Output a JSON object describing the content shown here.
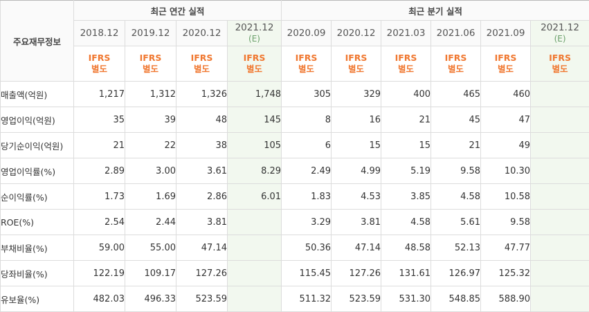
{
  "header": {
    "row_label": "주요재무정보",
    "group_annual": "최근 연간 실적",
    "group_quarter": "최근 분기 실적"
  },
  "periods": [
    {
      "date": "2018.12",
      "est": "",
      "std1": "IFRS",
      "std2": "별도"
    },
    {
      "date": "2019.12",
      "est": "",
      "std1": "IFRS",
      "std2": "별도"
    },
    {
      "date": "2020.12",
      "est": "",
      "std1": "IFRS",
      "std2": "별도"
    },
    {
      "date": "2021.12",
      "est": "(E)",
      "std1": "IFRS",
      "std2": "별도"
    },
    {
      "date": "2020.09",
      "est": "",
      "std1": "IFRS",
      "std2": "별도"
    },
    {
      "date": "2020.12",
      "est": "",
      "std1": "IFRS",
      "std2": "별도"
    },
    {
      "date": "2021.03",
      "est": "",
      "std1": "IFRS",
      "std2": "별도"
    },
    {
      "date": "2021.06",
      "est": "",
      "std1": "IFRS",
      "std2": "별도"
    },
    {
      "date": "2021.09",
      "est": "",
      "std1": "IFRS",
      "std2": "별도"
    },
    {
      "date": "2021.12",
      "est": "(E)",
      "std1": "IFRS",
      "std2": "별도"
    }
  ],
  "rows": [
    {
      "label": "매출액(억원)",
      "values": [
        "1,217",
        "1,312",
        "1,326",
        "1,748",
        "305",
        "329",
        "400",
        "465",
        "460",
        ""
      ]
    },
    {
      "label": "영업이익(억원)",
      "values": [
        "35",
        "39",
        "48",
        "145",
        "8",
        "16",
        "21",
        "45",
        "47",
        ""
      ]
    },
    {
      "label": "당기순이익(억원)",
      "values": [
        "21",
        "22",
        "38",
        "105",
        "6",
        "15",
        "15",
        "21",
        "49",
        ""
      ]
    },
    {
      "label": "영업이익률(%)",
      "values": [
        "2.89",
        "3.00",
        "3.61",
        "8.29",
        "2.49",
        "4.99",
        "5.19",
        "9.58",
        "10.30",
        ""
      ]
    },
    {
      "label": "순이익률(%)",
      "values": [
        "1.73",
        "1.69",
        "2.86",
        "6.01",
        "1.83",
        "4.53",
        "3.85",
        "4.58",
        "10.58",
        ""
      ]
    },
    {
      "label": "ROE(%)",
      "values": [
        "2.54",
        "2.44",
        "3.81",
        "",
        "3.29",
        "3.81",
        "4.58",
        "5.61",
        "9.58",
        ""
      ]
    },
    {
      "label": "부채비율(%)",
      "values": [
        "59.00",
        "55.00",
        "47.14",
        "",
        "50.36",
        "47.14",
        "48.58",
        "52.13",
        "47.77",
        ""
      ]
    },
    {
      "label": "당좌비율(%)",
      "values": [
        "122.19",
        "109.17",
        "127.26",
        "",
        "115.45",
        "127.26",
        "131.61",
        "126.97",
        "125.32",
        ""
      ]
    },
    {
      "label": "유보율(%)",
      "values": [
        "482.03",
        "496.33",
        "523.59",
        "",
        "511.32",
        "523.59",
        "531.30",
        "548.85",
        "588.90",
        ""
      ]
    }
  ],
  "colors": {
    "ifrs_text": "#f0772f",
    "estimate_bg": "#f2f8ef",
    "estimate_sub": "#6aa06a",
    "border": "#dcdcdc"
  }
}
